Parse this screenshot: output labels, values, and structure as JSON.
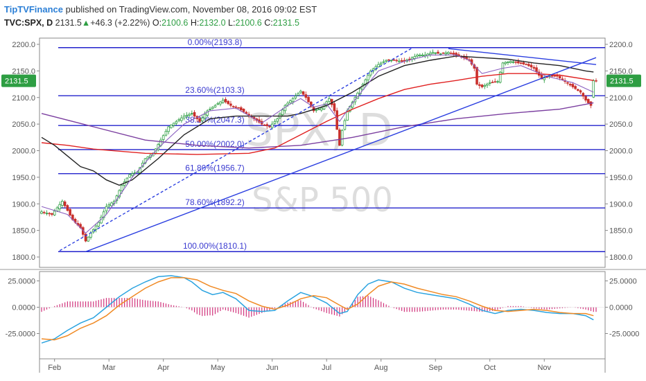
{
  "header": {
    "brand": "TipTVFinance",
    "publish_text": "published on TradingView.com, November 08, 2016 09:02 EST",
    "symbol": "TVC:SPX, D",
    "last": "2131.5",
    "change_arrow": "▲",
    "change": "+46.3 (+2.22%)",
    "o_label": "O:",
    "o_value": "2100.6",
    "h_label": "H:",
    "h_value": "2132.0",
    "l_label": "L:",
    "l_value": "2100.6",
    "c_label": "C:",
    "c_value": "2131.5"
  },
  "watermark": {
    "symbol": "SPX, D",
    "name": "S&P 500"
  },
  "colors": {
    "candle_up": "#2e9e43",
    "candle_down": "#c9302c",
    "fib": "#2222cc",
    "ma_black": "#222222",
    "ma_red": "#e02020",
    "ma_purple": "#7b3fa0",
    "ema_purple": "#8a5fc0",
    "trend": "#2a3ee0",
    "macd": "#2aa3e0",
    "signal": "#f08a24",
    "histogram": "#d0307a",
    "price_badge": "#2e9e43"
  },
  "chart_data": [
    {
      "type": "candlestick",
      "ylim": [
        1790,
        2215
      ],
      "y_ticks": [
        "1800.0",
        "1850.0",
        "1900.0",
        "1950.0",
        "2000.0",
        "2050.0",
        "2100.0",
        "2150.0",
        "2200.0"
      ],
      "x_ticks": [
        "Feb",
        "Mar",
        "Apr",
        "May",
        "Jun",
        "Jul",
        "Aug",
        "Sep",
        "Oct",
        "Nov"
      ],
      "last_price_label": "2131.5",
      "fib_levels": [
        {
          "label": "0.00%(2193.8)",
          "value": 2193.8
        },
        {
          "label": "23.60%(2103.3)",
          "value": 2103.3
        },
        {
          "label": "38.20%(2047.3)",
          "value": 2047.3
        },
        {
          "label": "50.00%(2002.0)",
          "value": 2002.0
        },
        {
          "label": "61.80%(1956.7)",
          "value": 1956.7
        },
        {
          "label": "78.60%(1892.2)",
          "value": 1892.2
        },
        {
          "label": "100.00%(1810.1)",
          "value": 1810.1
        }
      ],
      "close_path": [
        [
          0,
          1885
        ],
        [
          4,
          1880
        ],
        [
          8,
          1905
        ],
        [
          12,
          1870
        ],
        [
          15,
          1855
        ],
        [
          17,
          1830
        ],
        [
          19,
          1845
        ],
        [
          22,
          1865
        ],
        [
          25,
          1895
        ],
        [
          28,
          1905
        ],
        [
          31,
          1935
        ],
        [
          34,
          1955
        ],
        [
          37,
          1960
        ],
        [
          40,
          1985
        ],
        [
          43,
          1995
        ],
        [
          46,
          2020
        ],
        [
          49,
          2045
        ],
        [
          52,
          2055
        ],
        [
          55,
          2065
        ],
        [
          58,
          2070
        ],
        [
          61,
          2055
        ],
        [
          64,
          2075
        ],
        [
          67,
          2085
        ],
        [
          70,
          2095
        ],
        [
          73,
          2085
        ],
        [
          76,
          2080
        ],
        [
          79,
          2070
        ],
        [
          82,
          2060
        ],
        [
          85,
          2050
        ],
        [
          88,
          2045
        ],
        [
          91,
          2060
        ],
        [
          94,
          2085
        ],
        [
          97,
          2098
        ],
        [
          100,
          2112
        ],
        [
          102,
          2100
        ],
        [
          105,
          2075
        ],
        [
          108,
          2080
        ],
        [
          111,
          2098
        ],
        [
          113,
          2075
        ],
        [
          114,
          2040
        ],
        [
          115,
          2010
        ],
        [
          116,
          2038
        ],
        [
          118,
          2075
        ],
        [
          121,
          2100
        ],
        [
          124,
          2125
        ],
        [
          127,
          2150
        ],
        [
          130,
          2162
        ],
        [
          133,
          2170
        ],
        [
          136,
          2170
        ],
        [
          139,
          2168
        ],
        [
          142,
          2172
        ],
        [
          145,
          2180
        ],
        [
          148,
          2180
        ],
        [
          151,
          2185
        ],
        [
          154,
          2182
        ],
        [
          157,
          2185
        ],
        [
          160,
          2180
        ],
        [
          163,
          2175
        ],
        [
          165,
          2170
        ],
        [
          167,
          2155
        ],
        [
          168,
          2125
        ],
        [
          170,
          2120
        ],
        [
          173,
          2128
        ],
        [
          176,
          2130
        ],
        [
          178,
          2165
        ],
        [
          181,
          2168
        ],
        [
          184,
          2165
        ],
        [
          187,
          2162
        ],
        [
          190,
          2155
        ],
        [
          193,
          2135
        ],
        [
          196,
          2140
        ],
        [
          199,
          2140
        ],
        [
          202,
          2130
        ],
        [
          205,
          2120
        ],
        [
          208,
          2110
        ],
        [
          210,
          2095
        ],
        [
          212,
          2085
        ],
        [
          213,
          2131.5
        ]
      ],
      "series": [
        {
          "name": "",
          "role": "ma-long-purple",
          "points": [
            [
              0,
              2070
            ],
            [
              20,
              2045
            ],
            [
              40,
              2020
            ],
            [
              60,
              2010
            ],
            [
              80,
              2005
            ],
            [
              100,
              2010
            ],
            [
              120,
              2025
            ],
            [
              140,
              2045
            ],
            [
              160,
              2060
            ],
            [
              180,
              2070
            ],
            [
              200,
              2078
            ],
            [
              213,
              2090
            ]
          ]
        },
        {
          "name": "",
          "role": "ma-red",
          "points": [
            [
              0,
              2015
            ],
            [
              10,
              2010
            ],
            [
              20,
              2003
            ],
            [
              40,
              1995
            ],
            [
              60,
              1993
            ],
            [
              80,
              1995
            ],
            [
              90,
              2005
            ],
            [
              100,
              2030
            ],
            [
              110,
              2055
            ],
            [
              120,
              2078
            ],
            [
              130,
              2098
            ],
            [
              140,
              2115
            ],
            [
              150,
              2125
            ],
            [
              160,
              2132
            ],
            [
              170,
              2140
            ],
            [
              180,
              2145
            ],
            [
              190,
              2145
            ],
            [
              200,
              2142
            ],
            [
              213,
              2132
            ]
          ]
        },
        {
          "name": "",
          "role": "ma-black",
          "points": [
            [
              0,
              2025
            ],
            [
              5,
              2010
            ],
            [
              10,
              1990
            ],
            [
              15,
              1970
            ],
            [
              20,
              1962
            ],
            [
              25,
              1945
            ],
            [
              30,
              1935
            ],
            [
              35,
              1945
            ],
            [
              45,
              1985
            ],
            [
              55,
              2030
            ],
            [
              65,
              2060
            ],
            [
              75,
              2065
            ],
            [
              85,
              2065
            ],
            [
              95,
              2065
            ],
            [
              100,
              2070
            ],
            [
              110,
              2085
            ],
            [
              120,
              2110
            ],
            [
              130,
              2140
            ],
            [
              140,
              2160
            ],
            [
              150,
              2170
            ],
            [
              160,
              2178
            ],
            [
              170,
              2175
            ],
            [
              180,
              2172
            ],
            [
              190,
              2165
            ],
            [
              200,
              2160
            ],
            [
              210,
              2150
            ],
            [
              213,
              2148
            ]
          ]
        },
        {
          "name": "",
          "role": "ema-purple",
          "points": [
            [
              0,
              1895
            ],
            [
              10,
              1880
            ],
            [
              17,
              1845
            ],
            [
              25,
              1880
            ],
            [
              35,
              1950
            ],
            [
              45,
              2005
            ],
            [
              55,
              2050
            ],
            [
              65,
              2075
            ],
            [
              75,
              2080
            ],
            [
              85,
              2052
            ],
            [
              95,
              2085
            ],
            [
              100,
              2098
            ],
            [
              105,
              2082
            ],
            [
              110,
              2088
            ],
            [
              115,
              2055
            ],
            [
              120,
              2090
            ],
            [
              130,
              2150
            ],
            [
              140,
              2168
            ],
            [
              150,
              2180
            ],
            [
              160,
              2180
            ],
            [
              165,
              2170
            ],
            [
              170,
              2145
            ],
            [
              178,
              2155
            ],
            [
              185,
              2160
            ],
            [
              195,
              2140
            ],
            [
              205,
              2128
            ],
            [
              213,
              2110
            ]
          ]
        }
      ],
      "trendlines": [
        {
          "style": "solid",
          "from": [
            17,
            1810
          ],
          "to": [
            214,
            2175
          ]
        },
        {
          "style": "solid",
          "from": [
            157,
            2192
          ],
          "to": [
            214,
            2162
          ]
        },
        {
          "style": "dashed",
          "from": [
            7,
            1812
          ],
          "to": [
            143,
            2193
          ]
        }
      ]
    },
    {
      "type": "macd",
      "ylim": [
        -38,
        32
      ],
      "y_ticks": [
        "25.0000",
        "0.0000",
        "-25.0000"
      ],
      "series": [
        {
          "name": "",
          "role": "macd",
          "points": [
            [
              0,
              -34
            ],
            [
              5,
              -30
            ],
            [
              10,
              -22
            ],
            [
              15,
              -15
            ],
            [
              20,
              -10
            ],
            [
              25,
              0
            ],
            [
              30,
              10
            ],
            [
              35,
              18
            ],
            [
              40,
              24
            ],
            [
              45,
              29
            ],
            [
              50,
              30
            ],
            [
              55,
              28
            ],
            [
              58,
              24
            ],
            [
              62,
              16
            ],
            [
              66,
              12
            ],
            [
              70,
              14
            ],
            [
              75,
              8
            ],
            [
              80,
              -3
            ],
            [
              85,
              -4
            ],
            [
              90,
              -3
            ],
            [
              95,
              6
            ],
            [
              100,
              14
            ],
            [
              105,
              10
            ],
            [
              110,
              4
            ],
            [
              115,
              -6
            ],
            [
              118,
              -4
            ],
            [
              122,
              12
            ],
            [
              126,
              22
            ],
            [
              130,
              26
            ],
            [
              135,
              24
            ],
            [
              140,
              18
            ],
            [
              145,
              14
            ],
            [
              150,
              12
            ],
            [
              155,
              10
            ],
            [
              160,
              8
            ],
            [
              165,
              3
            ],
            [
              170,
              -3
            ],
            [
              175,
              -6
            ],
            [
              180,
              -3
            ],
            [
              185,
              -2
            ],
            [
              190,
              -3
            ],
            [
              195,
              -5
            ],
            [
              200,
              -6
            ],
            [
              205,
              -6
            ],
            [
              210,
              -8
            ],
            [
              213,
              -12
            ]
          ]
        },
        {
          "name": "",
          "role": "signal",
          "points": [
            [
              0,
              -30
            ],
            [
              5,
              -31
            ],
            [
              10,
              -27
            ],
            [
              15,
              -20
            ],
            [
              20,
              -15
            ],
            [
              25,
              -8
            ],
            [
              30,
              2
            ],
            [
              35,
              10
            ],
            [
              40,
              18
            ],
            [
              45,
              24
            ],
            [
              50,
              28
            ],
            [
              55,
              28
            ],
            [
              60,
              26
            ],
            [
              65,
              20
            ],
            [
              70,
              16
            ],
            [
              75,
              13
            ],
            [
              80,
              6
            ],
            [
              85,
              1
            ],
            [
              90,
              -2
            ],
            [
              95,
              2
            ],
            [
              100,
              8
            ],
            [
              105,
              11
            ],
            [
              110,
              9
            ],
            [
              115,
              2
            ],
            [
              118,
              -2
            ],
            [
              122,
              3
            ],
            [
              126,
              12
            ],
            [
              130,
              20
            ],
            [
              135,
              24
            ],
            [
              140,
              22
            ],
            [
              145,
              18
            ],
            [
              150,
              15
            ],
            [
              155,
              12
            ],
            [
              160,
              10
            ],
            [
              165,
              6
            ],
            [
              170,
              1
            ],
            [
              175,
              -3
            ],
            [
              180,
              -4
            ],
            [
              185,
              -3
            ],
            [
              190,
              -2
            ],
            [
              195,
              -3
            ],
            [
              200,
              -5
            ],
            [
              205,
              -6
            ],
            [
              210,
              -6
            ],
            [
              213,
              -8
            ]
          ]
        }
      ]
    }
  ]
}
